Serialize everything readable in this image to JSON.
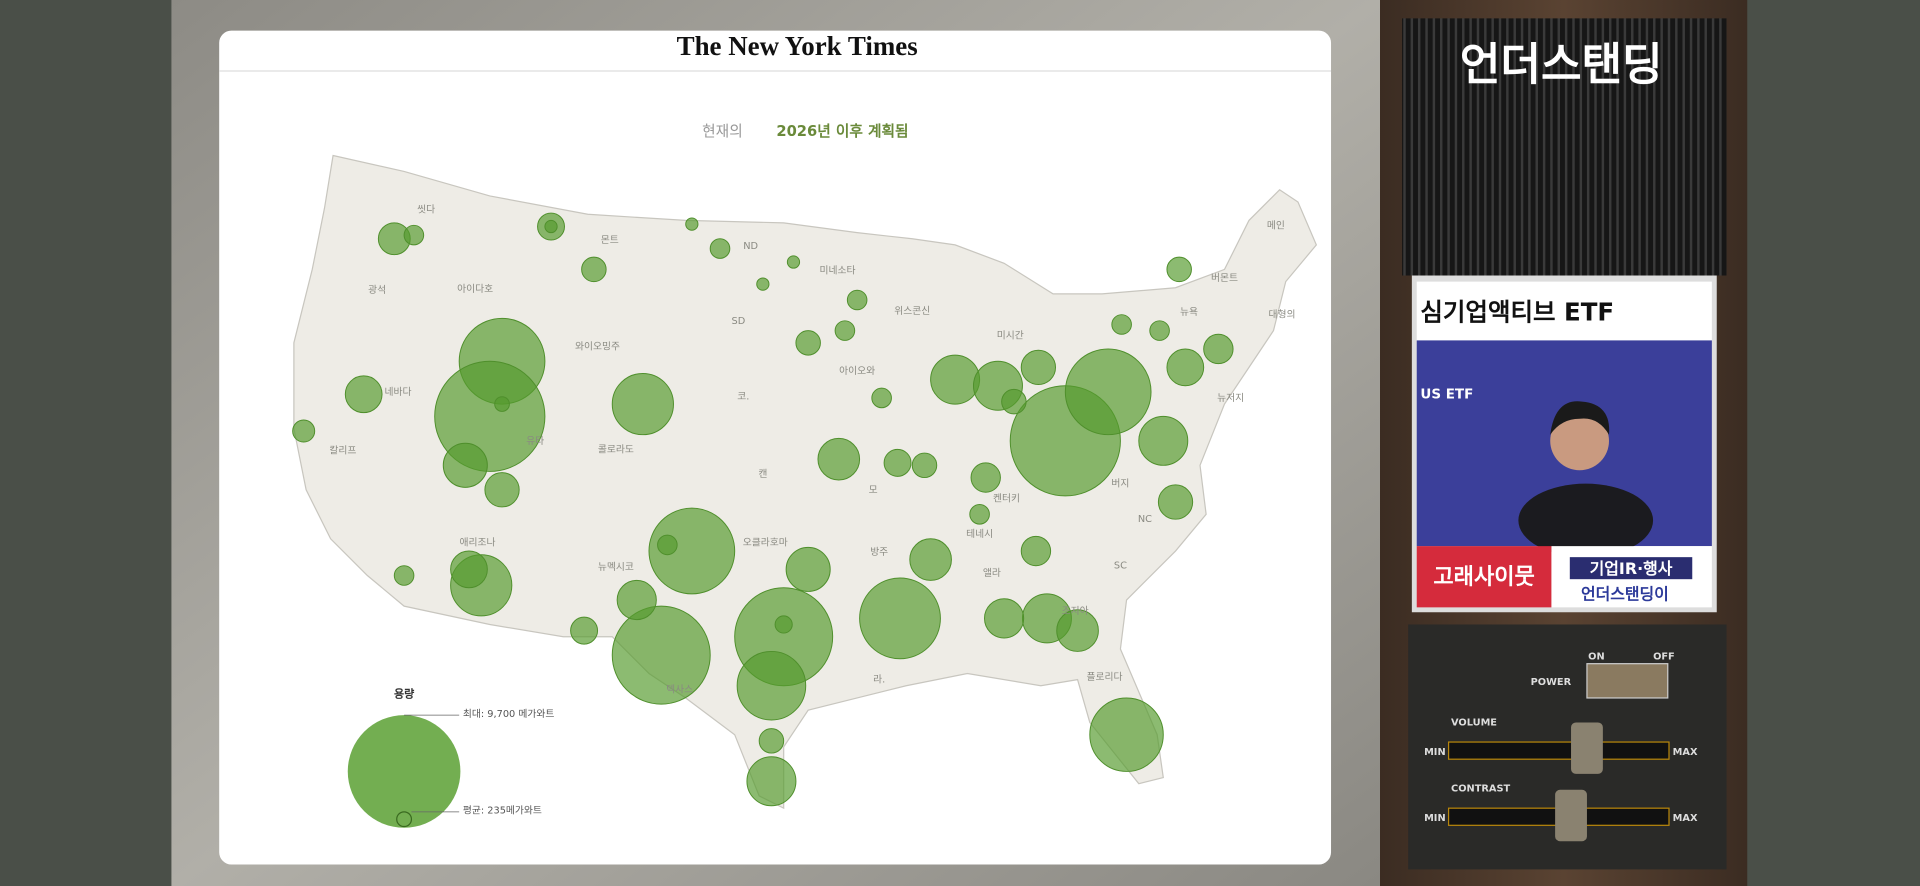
{
  "header": {
    "logo": "The New York Times"
  },
  "tabs": [
    "현재의",
    "2026년 이후 계획됨"
  ],
  "map": {
    "labels": [
      "씻다",
      "광석",
      "아이다호",
      "몬트",
      "와이오밍주",
      "ND",
      "SD",
      "미네소타",
      "위스콘신",
      "미시간",
      "아이오와",
      "네바다",
      "칼리프",
      "유타",
      "콜로라도",
      "코.",
      "캔",
      "모",
      "애리조나",
      "뉴멕시코",
      "오클라호마",
      "방주",
      "켄터키",
      "테네시",
      "NC",
      "SC",
      "앨라",
      "조지아",
      "라.",
      "텍사스",
      "플로리다",
      "메인",
      "버몬트",
      "뉴욕",
      "대형의",
      "뉴저지",
      "버지"
    ]
  },
  "legend": {
    "title": "용량",
    "max": "최대: 9,700 메가와트",
    "avg": "평균: 235메가와트"
  },
  "side": {
    "title": "언더스탠딩",
    "inset": {
      "banner": "심기업액티브 ETF",
      "logo": "US ETF",
      "lower_left": "고래사이뭇",
      "lower_right_top": "기업IR·행사",
      "lower_right_bottom": "언더스탠딩이"
    },
    "controls": {
      "power": "POWER",
      "on": "ON",
      "off": "OFF",
      "volume": "VOLUME",
      "contrast": "CONTRAST",
      "min": "MIN",
      "max": "MAX"
    }
  }
}
